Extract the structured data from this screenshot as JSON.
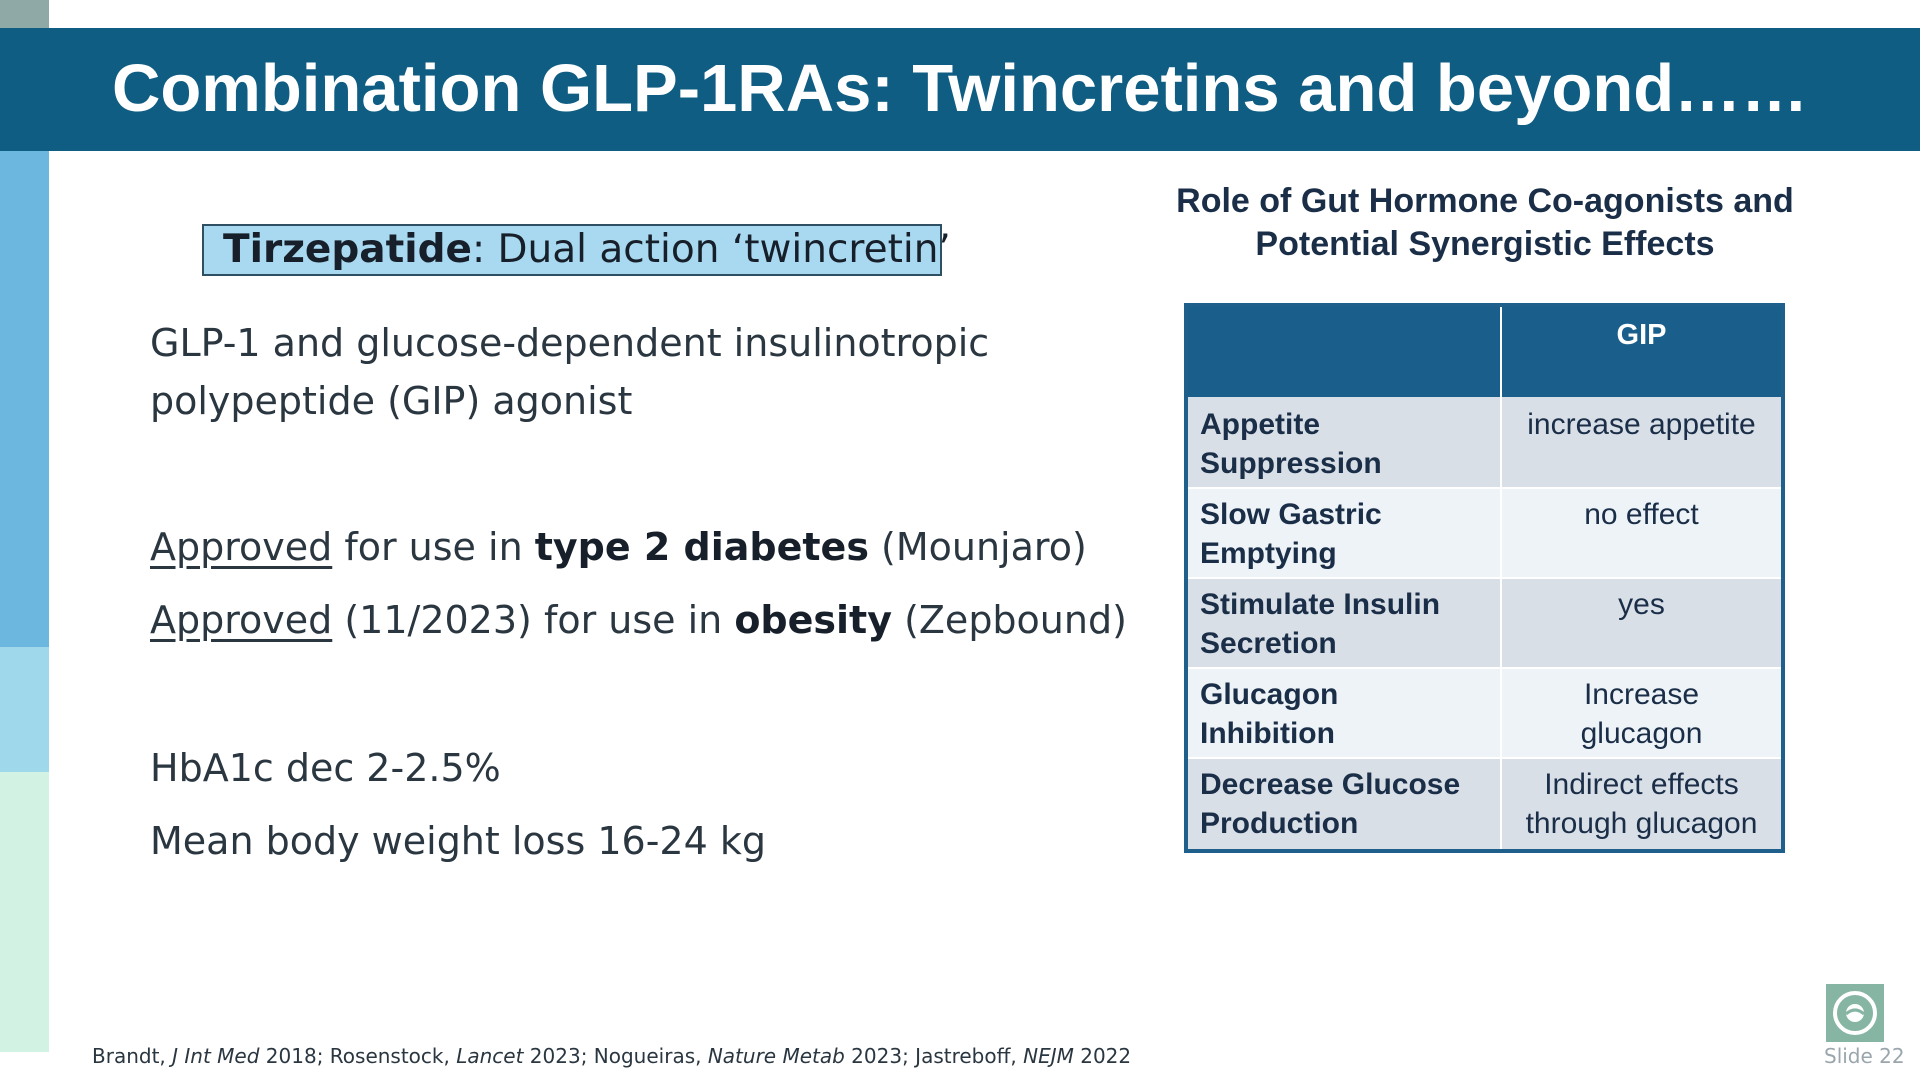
{
  "slide": {
    "title": "Combination GLP-1RAs: Twincretins and beyond……",
    "slide_number": "Slide 22"
  },
  "left": {
    "tirzepatide_name": "Tirzepatide",
    "tirzepatide_desc": ": Dual action ‘twincretin’",
    "mechanism_line1": "GLP-1 and glucose-dependent insulinotropic",
    "mechanism_line2": "polypeptide (GIP) agonist",
    "approval1": {
      "approved": "Approved",
      "text": " for use in ",
      "bold": "type 2 diabetes",
      "suffix": " (Mounjaro)"
    },
    "approval2": {
      "approved": "Approved",
      "text": " (11/2023) for use in ",
      "bold": "obesity",
      "suffix": " (Zepbound)"
    },
    "hba1c": "HbA1c dec 2-2.5%",
    "weight_loss": "Mean body weight loss 16-24 kg"
  },
  "right": {
    "title_line1": "Role of Gut Hormone Co-agonists and",
    "title_line2": "Potential Synergistic Effects",
    "table": {
      "header_empty": "",
      "header_gip": "GIP",
      "rows": [
        {
          "label1": "Appetite",
          "label2": "Suppression",
          "val1": "increase appetite",
          "val2": ""
        },
        {
          "label1": "Slow Gastric",
          "label2": "Emptying",
          "val1": "no effect",
          "val2": ""
        },
        {
          "label1": "Stimulate Insulin",
          "label2": "Secretion",
          "val1": "yes",
          "val2": ""
        },
        {
          "label1": "Glucagon",
          "label2": "Inhibition",
          "val1": "Increase",
          "val2": "glucagon"
        },
        {
          "label1": "Decrease Glucose",
          "label2": "Production",
          "val1": "Indirect effects",
          "val2": "through glucagon"
        }
      ]
    }
  },
  "references": {
    "a1": "Brandt, ",
    "a1_journal": "J Int Med",
    "a1_year": " 2018; Rosenstock, ",
    "a2_journal": "Lancet",
    "a2_year": " 2023; Nogueiras, ",
    "a3_journal": "Nature Metab",
    "a3_year": " 2023; Jastreboff, ",
    "a4_journal": "NEJM",
    "a4_year": " 2022"
  },
  "colors": {
    "header_bg": "#0f5d82",
    "table_header_bg": "#1a5e8b",
    "highlight_box": "#a9d9f0"
  }
}
